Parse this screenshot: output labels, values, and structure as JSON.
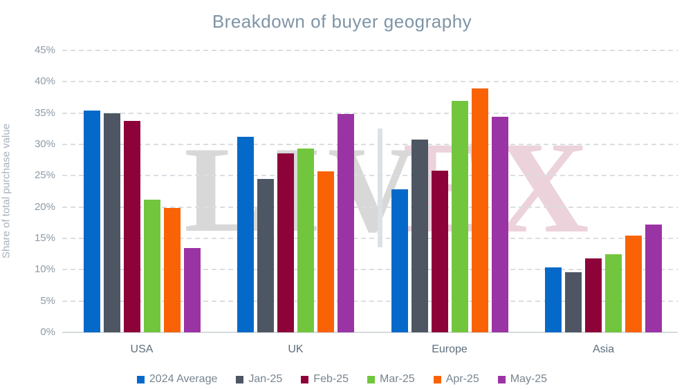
{
  "title": "Breakdown of buyer geography",
  "y_axis": {
    "label": "Share of total purchase value",
    "ticks": [
      "45%",
      "40%",
      "35%",
      "30%",
      "25%",
      "20%",
      "15%",
      "10%",
      "5%",
      "0%"
    ]
  },
  "x_axis": {
    "labels": [
      "USA",
      "UK",
      "Europe",
      "Asia"
    ]
  },
  "watermark": {
    "left_text": "LIV",
    "right_text": "EX",
    "gray_color": "#d8d8d8",
    "pink_color": "#ecd2db"
  },
  "legend": {
    "entries": [
      "2024 Average",
      "Jan-25",
      "Feb-25",
      "Mar-25",
      "Apr-25",
      "May-25"
    ]
  },
  "chart_data": {
    "type": "bar",
    "title": "Breakdown of buyer geography",
    "xlabel": "",
    "ylabel": "Share of total purchase value",
    "ylim": [
      0,
      45
    ],
    "ytick_step": 5,
    "ytick_format": "percent",
    "grid": "horizontal-dashed",
    "legend_position": "bottom",
    "categories": [
      "USA",
      "UK",
      "Europe",
      "Asia"
    ],
    "series": [
      {
        "name": "2024 Average",
        "color": "#0569c9",
        "values": [
          35.4,
          31.2,
          22.8,
          10.4
        ]
      },
      {
        "name": "Jan-25",
        "color": "#4d5662",
        "values": [
          35.0,
          24.5,
          30.8,
          9.6
        ]
      },
      {
        "name": "Feb-25",
        "color": "#8d0339",
        "values": [
          33.8,
          28.6,
          25.8,
          11.8
        ]
      },
      {
        "name": "Mar-25",
        "color": "#72c63e",
        "values": [
          21.2,
          29.3,
          36.9,
          12.5
        ]
      },
      {
        "name": "Apr-25",
        "color": "#f96305",
        "values": [
          19.9,
          25.7,
          38.9,
          15.4
        ]
      },
      {
        "name": "May-25",
        "color": "#9a33a3",
        "values": [
          13.5,
          34.9,
          34.4,
          17.2
        ]
      }
    ]
  }
}
